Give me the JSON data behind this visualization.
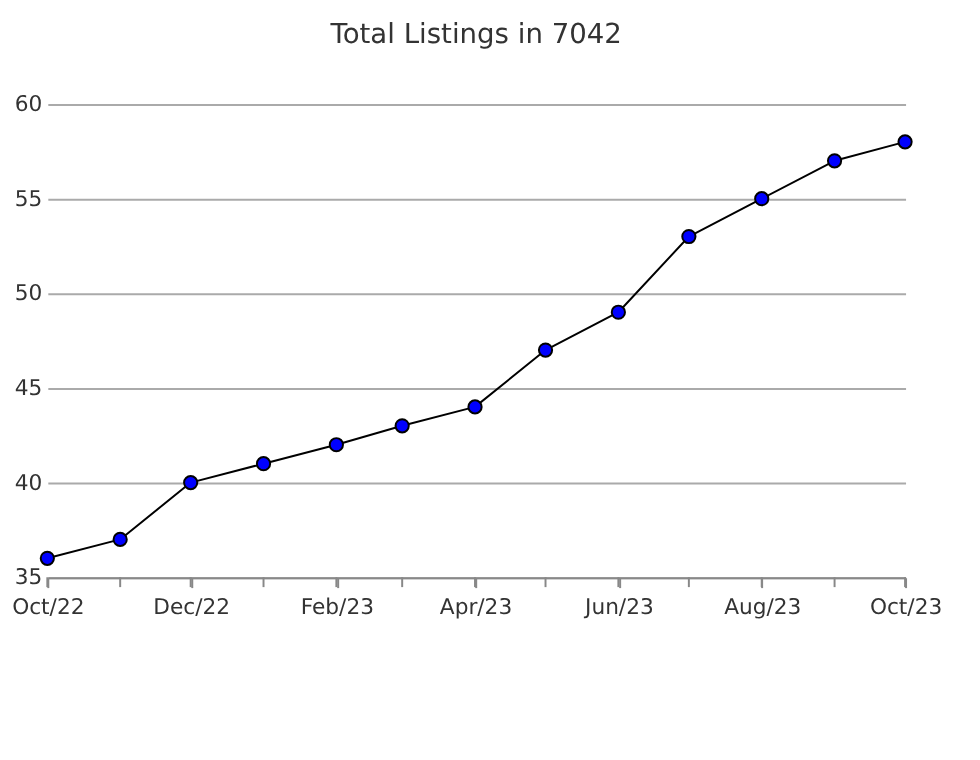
{
  "chart_data": {
    "type": "line",
    "title": "Total Listings in 7042",
    "x": [
      "2022-10",
      "2022-11",
      "2022-12",
      "2023-01",
      "2023-02",
      "2023-03",
      "2023-04",
      "2023-05",
      "2023-06",
      "2023-07",
      "2023-08",
      "2023-09",
      "2023-10"
    ],
    "series": [
      {
        "color": "#0000ff",
        "values": [
          36,
          37,
          40,
          41,
          42,
          43,
          44,
          47,
          49,
          53,
          55,
          57,
          58
        ]
      }
    ],
    "xlim": [
      "2022-10",
      "2023-10"
    ],
    "xticks": [
      {
        "value": "2022-10",
        "label": "Oct/22"
      },
      {
        "value": "2022-11",
        "label": null
      },
      {
        "value": "2022-12",
        "label": "Dec/22"
      },
      {
        "value": "2023-01",
        "label": null
      },
      {
        "value": "2023-02",
        "label": "Feb/23"
      },
      {
        "value": "2023-03",
        "label": null
      },
      {
        "value": "2023-04",
        "label": "Apr/23"
      },
      {
        "value": "2023-05",
        "label": null
      },
      {
        "value": "2023-06",
        "label": "Jun/23"
      },
      {
        "value": "2023-07",
        "label": null
      },
      {
        "value": "2023-08",
        "label": "Aug/23"
      },
      {
        "value": "2023-09",
        "label": null
      },
      {
        "value": "2023-10",
        "label": "Oct/23"
      }
    ],
    "ylim": [
      35,
      60
    ],
    "yticks": [
      35,
      40,
      45,
      50,
      55,
      60
    ],
    "grid": "y",
    "marker": "circle",
    "line_style": "solid",
    "legend": false
  }
}
